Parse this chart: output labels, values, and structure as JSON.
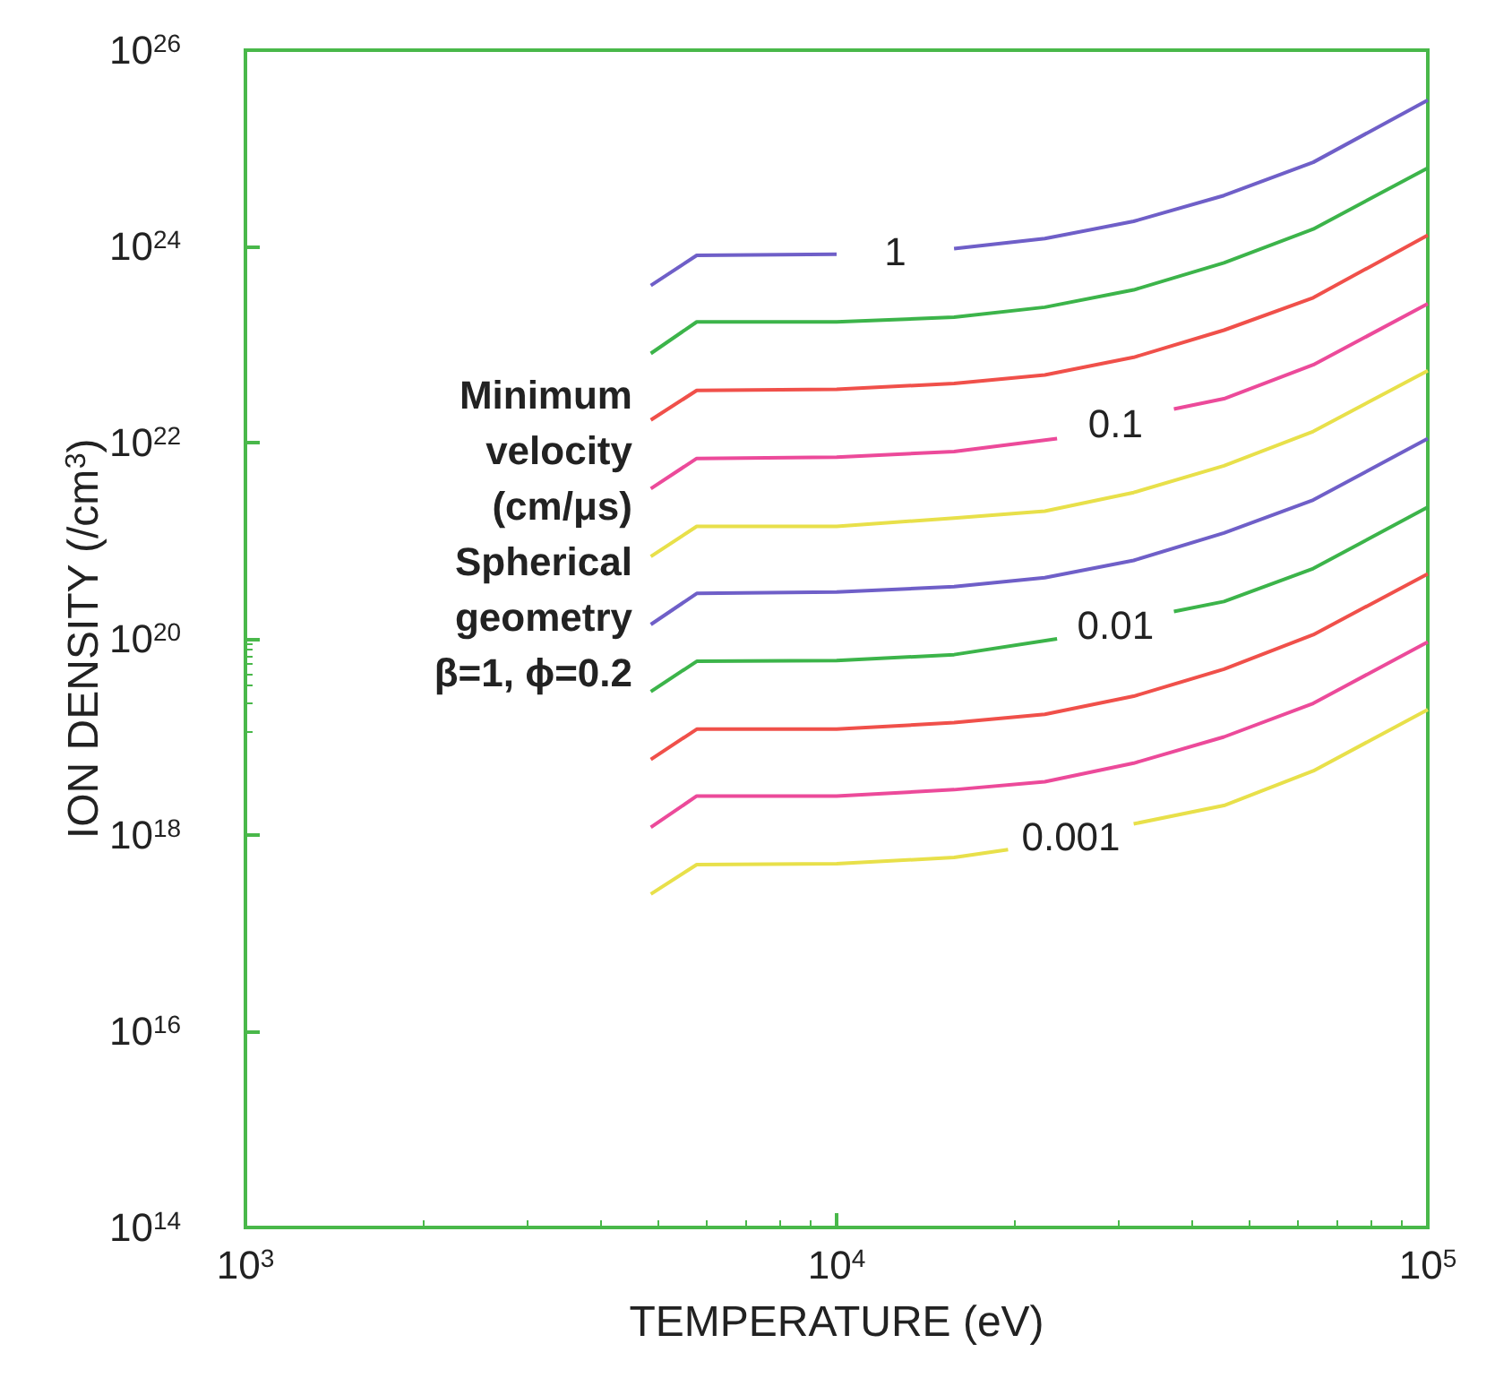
{
  "chart_data": {
    "type": "line",
    "xlabel": "TEMPERATURE (eV)",
    "ylabel": "ION DENSITY (/cm$^{3}$)",
    "log": "xy",
    "grid": false,
    "legend": false,
    "marker": "none",
    "line_style": "solid",
    "xlim": [
      1000,
      100000
    ],
    "xticks": [
      {
        "value": 1000,
        "label": "10$^{3}$"
      },
      {
        "value": 10000,
        "label": "10$^{4}$"
      },
      {
        "value": 100000,
        "label": "10$^{5}$"
      }
    ],
    "ylim": [
      100000000000000.0,
      1e+26
    ],
    "yticks": [
      {
        "value": 100000000000000.0,
        "label": "10$^{14}$"
      },
      {
        "value": 1e+16,
        "label": "10$^{16}$"
      },
      {
        "value": 1e+18,
        "label": "10$^{18}$"
      },
      {
        "value": 1e+20,
        "label": "10$^{20}$"
      },
      {
        "value": 1e+22,
        "label": "10$^{22}$"
      },
      {
        "value": 1e+24,
        "label": "10$^{24}$"
      },
      {
        "value": 1e+26,
        "label": "10$^{26}$"
      }
    ],
    "series": [
      {
        "name": "1",
        "color": "#6f5fc8",
        "x": [
          4850,
          5800,
          10000,
          12500,
          15800,
          22500,
          31800,
          45200,
          64000,
          100000
        ],
        "values": [
          4e+23,
          8.1e+23,
          8.3e+23,
          null,
          9.5e+23,
          1.2e+24,
          1.8e+24,
          3.3e+24,
          7.2e+24,
          3.1e+25
        ]
      },
      {
        "color": "#3cb44a",
        "x": [
          4850,
          5800,
          10000,
          15800,
          22500,
          31800,
          45200,
          64000,
          100000
        ],
        "values": [
          8.1e+22,
          1.7e+23,
          1.7e+23,
          1.9e+23,
          2.4e+23,
          3.6e+23,
          6.8e+23,
          1.5e+24,
          6.3e+24
        ]
      },
      {
        "color": "#f0504a",
        "x": [
          4850,
          5800,
          10000,
          15800,
          22500,
          31800,
          45200,
          64000,
          100000
        ],
        "values": [
          1.7e+22,
          3.4e+22,
          3.5e+22,
          4e+22,
          4.9e+22,
          7.4e+22,
          1.4e+23,
          3e+23,
          1.3e+24
        ]
      },
      {
        "name": "0.1",
        "color": "#ec4a9a",
        "x": [
          4850,
          5800,
          10000,
          15800,
          23600,
          30000,
          37200,
          45200,
          64000,
          100000
        ],
        "values": [
          3.4e+21,
          6.9e+21,
          7.1e+21,
          8.1e+21,
          1.1e+22,
          null,
          2.2e+22,
          2.8e+22,
          6.2e+22,
          2.6e+23
        ]
      },
      {
        "color": "#e8e04a",
        "x": [
          4850,
          5800,
          10000,
          15800,
          22500,
          31800,
          45200,
          64000,
          100000
        ],
        "values": [
          6.9e+20,
          1.4e+21,
          1.4e+21,
          1.7e+21,
          2e+21,
          3.1e+21,
          5.8e+21,
          1.3e+22,
          5.4e+22
        ]
      },
      {
        "color": "#6f5fc8",
        "x": [
          4850,
          5800,
          10000,
          15800,
          22500,
          31800,
          45200,
          64000,
          100000
        ],
        "values": [
          1.4e+20,
          2.9e+20,
          3e+20,
          3.4e+20,
          4.2e+20,
          6.3e+20,
          1.2e+21,
          2.6e+21,
          1.1e+22
        ]
      },
      {
        "name": "0.01",
        "color": "#3cb44a",
        "x": [
          4850,
          5800,
          10000,
          15800,
          23600,
          30000,
          37200,
          45200,
          64000,
          100000
        ],
        "values": [
          2.9e+19,
          5.9e+19,
          6e+19,
          6.9e+19,
          1e+20,
          null,
          1.9e+20,
          2.4e+20,
          5.2e+20,
          2.2e+21
        ]
      },
      {
        "color": "#f0504a",
        "x": [
          4850,
          5800,
          10000,
          15800,
          22500,
          31800,
          45200,
          64000,
          100000
        ],
        "values": [
          5.9e+18,
          1.2e+19,
          1.2e+19,
          1.4e+19,
          1.7e+19,
          2.6e+19,
          4.9e+19,
          1.1e+20,
          4.6e+20
        ]
      },
      {
        "color": "#ec4a9a",
        "x": [
          4850,
          5800,
          10000,
          15800,
          22500,
          31800,
          45200,
          64000,
          100000
        ],
        "values": [
          1.2e+18,
          2.5e+18,
          2.5e+18,
          2.9e+18,
          3.5e+18,
          5.4e+18,
          1e+19,
          2.2e+19,
          9.3e+19
        ]
      },
      {
        "name": "0.001",
        "color": "#e8e04a",
        "x": [
          4850,
          5800,
          10000,
          15800,
          19500,
          25000,
          31800,
          45200,
          64000,
          100000
        ],
        "values": [
          2.5e+17,
          5e+17,
          5.1e+17,
          5.9e+17,
          7.1e+17,
          null,
          1.3e+18,
          2e+18,
          4.5e+18,
          1.9e+19
        ]
      }
    ],
    "annotations": [
      "Minimum\nvelocity\n(cm/μs)\nSpherical\ngeometry\nβ=1, ϕ=0.2"
    ]
  }
}
